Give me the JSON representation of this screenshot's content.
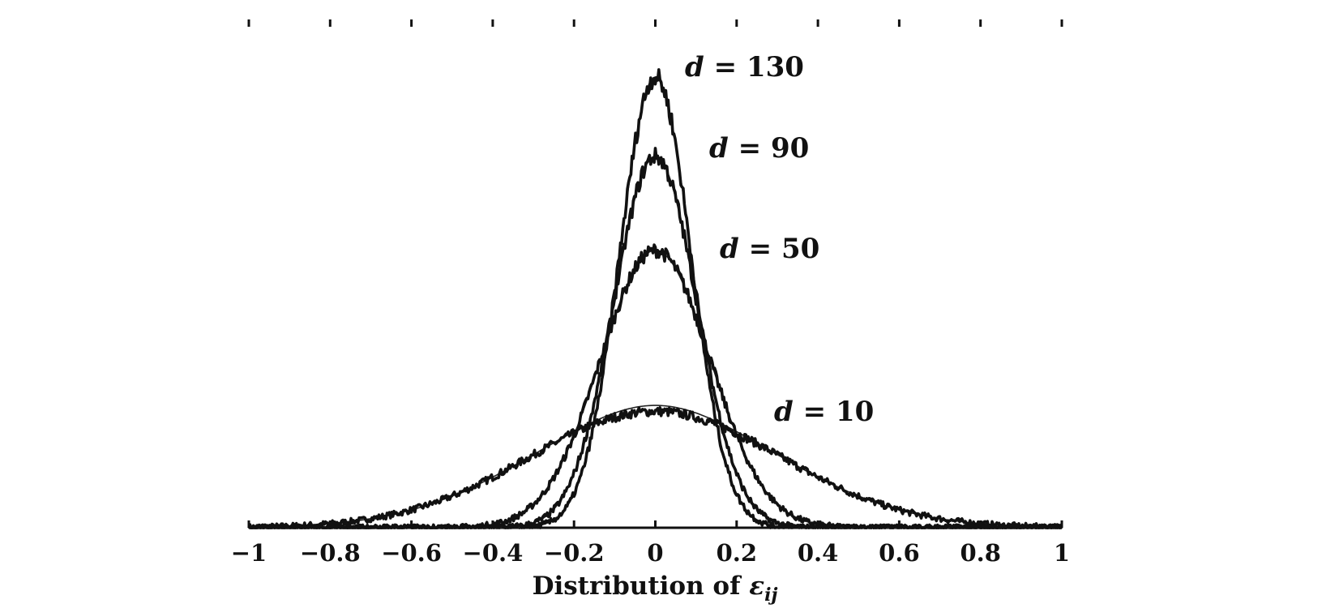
{
  "chart_data": {
    "type": "line",
    "title": "",
    "xlabel": "Distribution of εij",
    "xlabel_parts": {
      "prefix": "Distribution of ",
      "symbol": "ε",
      "subscript": "ij"
    },
    "ylabel": "",
    "xlim": [
      -1,
      1
    ],
    "ylim": [
      0,
      1.0
    ],
    "grid": false,
    "legend": "none",
    "x_ticks": [
      -1,
      -0.8,
      -0.6,
      -0.4,
      -0.2,
      0,
      0.2,
      0.4,
      0.6,
      0.8,
      1
    ],
    "x_tick_labels": [
      "−1",
      "−0.8",
      "−0.6",
      "−0.4",
      "−0.2",
      "0",
      "0.2",
      "0.4",
      "0.6",
      "0.8",
      "1"
    ],
    "series": [
      {
        "name": "d = 10",
        "label_d": "10",
        "peak": 0.235,
        "spread": 0.31
      },
      {
        "name": "d = 50",
        "label_d": "50",
        "peak": 0.56,
        "spread": 0.135
      },
      {
        "name": "d = 90",
        "label_d": "90",
        "peak": 0.75,
        "spread": 0.102
      },
      {
        "name": "d = 130",
        "label_d": "130",
        "peak": 0.91,
        "spread": 0.088
      }
    ]
  }
}
